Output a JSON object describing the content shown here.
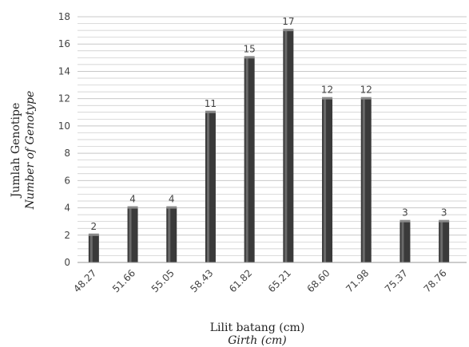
{
  "chart_data": {
    "type": "bar",
    "categories": [
      "48.27",
      "51.66",
      "55.05",
      "58.43",
      "61.82",
      "65.21",
      "68.60",
      "71.98",
      "75.37",
      "78.76"
    ],
    "values": [
      2,
      4,
      4,
      11,
      15,
      17,
      12,
      12,
      3,
      3
    ],
    "data_labels": [
      "2",
      "4",
      "4",
      "11",
      "15",
      "17",
      "12",
      "12",
      "3",
      "3"
    ],
    "ylim": [
      0,
      18
    ],
    "yticks": [
      "0",
      "2",
      "4",
      "6",
      "8",
      "10",
      "12",
      "14",
      "16",
      "18"
    ],
    "ylabel": "Jumlah Genotipe",
    "ylabel_sub": "Number of Genotype",
    "xlabel": "Lilit batang (cm)",
    "xlabel_sub": "Girth (cm)",
    "grid": true,
    "bar_color": "#3a3a3a",
    "grid_color": "#c8c8c8"
  }
}
